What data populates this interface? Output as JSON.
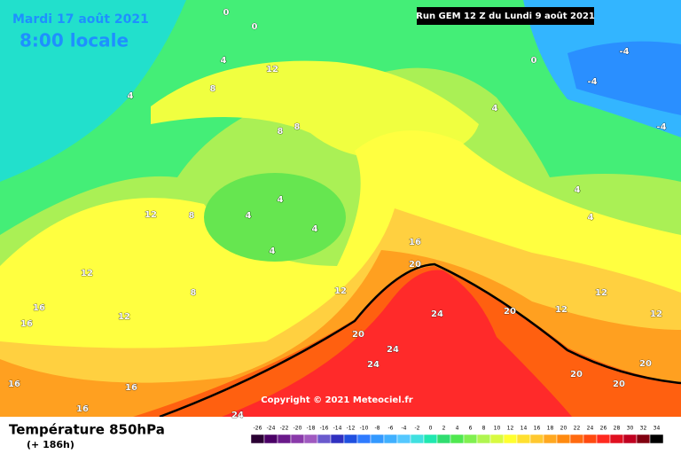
{
  "header": {
    "date": "Mardi 17 août 2021",
    "time": "8:00 locale",
    "run": "Run GEM 12 Z du Lundi 9 août 2021"
  },
  "copyright": "Copyright © 2021 Meteociel.fr",
  "footer": {
    "title": "Température 850hPa",
    "lead": "(+ 186h)"
  },
  "scale": {
    "ticks": [
      -26,
      -24,
      -22,
      -20,
      -18,
      -16,
      -14,
      -12,
      -10,
      -8,
      -6,
      -4,
      -2,
      0,
      2,
      4,
      6,
      8,
      10,
      12,
      14,
      16,
      18,
      20,
      22,
      24,
      26,
      28,
      30,
      32,
      34
    ],
    "colors": [
      "#2a0033",
      "#4b0066",
      "#6a1a8a",
      "#8a3aaa",
      "#a05ac0",
      "#6a5acd",
      "#3030c0",
      "#2050e0",
      "#2f7bff",
      "#3399ff",
      "#40b0ff",
      "#55c8ff",
      "#40e0e0",
      "#20e8b0",
      "#30dd70",
      "#50e850",
      "#80f050",
      "#b0f550",
      "#d8fa40",
      "#ffff30",
      "#ffe030",
      "#ffc830",
      "#ffa820",
      "#ff8a10",
      "#ff6a10",
      "#ff4a10",
      "#ff2a20",
      "#e01020",
      "#c00020",
      "#800010",
      "#000000"
    ]
  },
  "map_labels": [
    0,
    0,
    0,
    4,
    4,
    4,
    -4,
    -4,
    -4,
    8,
    8,
    8,
    12,
    4,
    4,
    4,
    4,
    12,
    8,
    12,
    16,
    16,
    12,
    8,
    12,
    16,
    20,
    24,
    20,
    20,
    24,
    24,
    20,
    20,
    20,
    16,
    16,
    24,
    12,
    12,
    12,
    4,
    4,
    16
  ]
}
